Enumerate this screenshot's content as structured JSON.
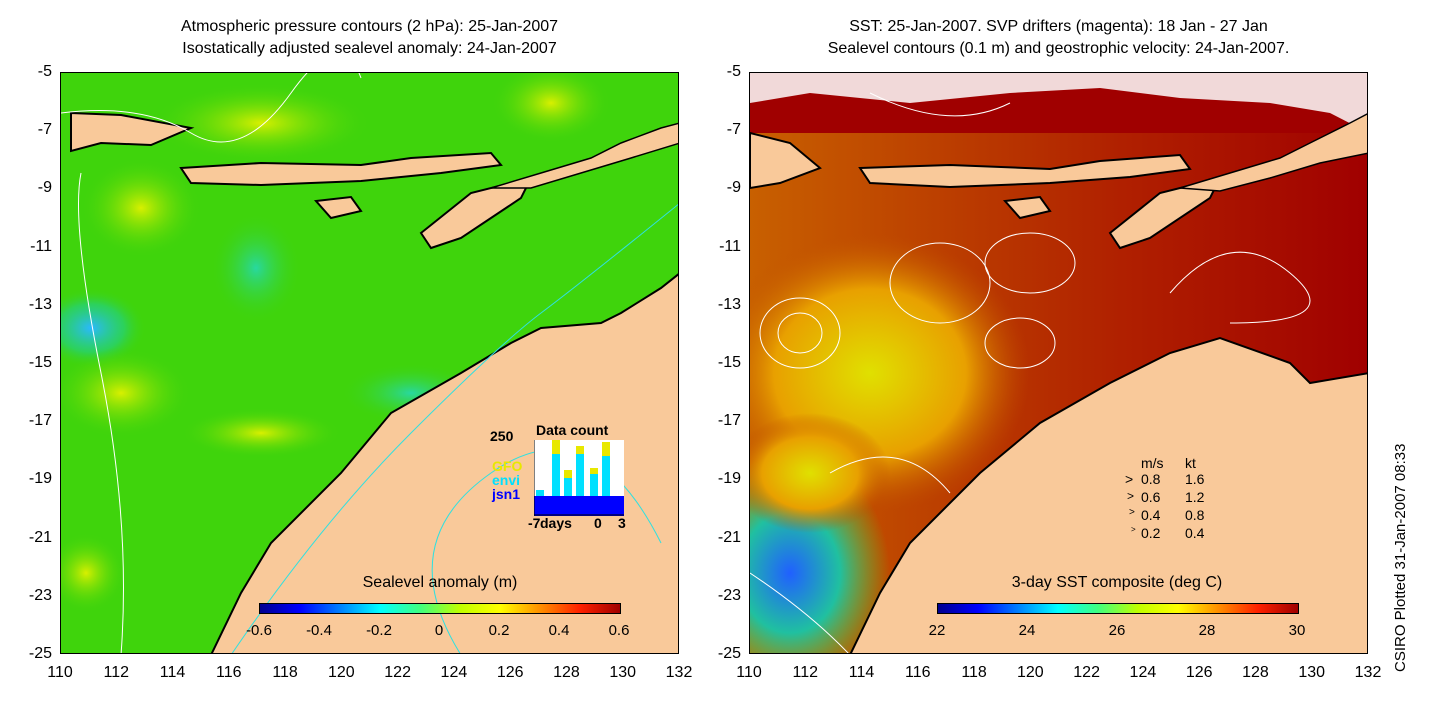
{
  "left_panel": {
    "title_line1": "Atmospheric pressure contours (2 hPa): 25-Jan-2007",
    "title_line2": "Isostatically adjusted sealevel anomaly: 24-Jan-2007",
    "colorbar_title": "Sealevel anomaly (m)",
    "colorbar_ticks": [
      "-0.6",
      "-0.4",
      "-0.2",
      "0",
      "0.2",
      "0.4",
      "0.6"
    ],
    "inset": {
      "max_label": "250",
      "title": "Data count",
      "x_labels": [
        "-7",
        "days",
        "0",
        "3"
      ],
      "sources": [
        "GFO",
        "envi",
        "jsn1"
      ],
      "source_colors": [
        "#e8e800",
        "#00e0ff",
        "#0000ff"
      ]
    }
  },
  "right_panel": {
    "title_line1": "SST: 25-Jan-2007. SVP drifters (magenta): 18 Jan - 27 Jan",
    "title_line2": "Sealevel contours (0.1 m) and geostrophic velocity: 24-Jan-2007.",
    "colorbar_title": "3-day SST composite (deg C)",
    "colorbar_ticks": [
      "22",
      "24",
      "26",
      "28",
      "30"
    ],
    "speed_legend": {
      "header_ms": "m/s",
      "header_kt": "kt",
      "rows": [
        {
          "ms": "0.8",
          "kt": "1.6"
        },
        {
          "ms": "0.6",
          "kt": "1.2"
        },
        {
          "ms": "0.4",
          "kt": "0.8"
        },
        {
          "ms": "0.2",
          "kt": "0.4"
        }
      ]
    }
  },
  "axes": {
    "y_ticks": [
      "-5",
      "-7",
      "-9",
      "-11",
      "-13",
      "-15",
      "-17",
      "-19",
      "-21",
      "-23",
      "-25"
    ],
    "x_ticks": [
      "110",
      "112",
      "114",
      "116",
      "118",
      "120",
      "122",
      "124",
      "126",
      "128",
      "130",
      "132"
    ]
  },
  "credit": "CSIRO Plotted 31-Jan-2007 08:33",
  "colors": {
    "land": "#f9c99a",
    "ocean_anomaly": "#3fd40c",
    "sst_hot": "#b51200"
  }
}
